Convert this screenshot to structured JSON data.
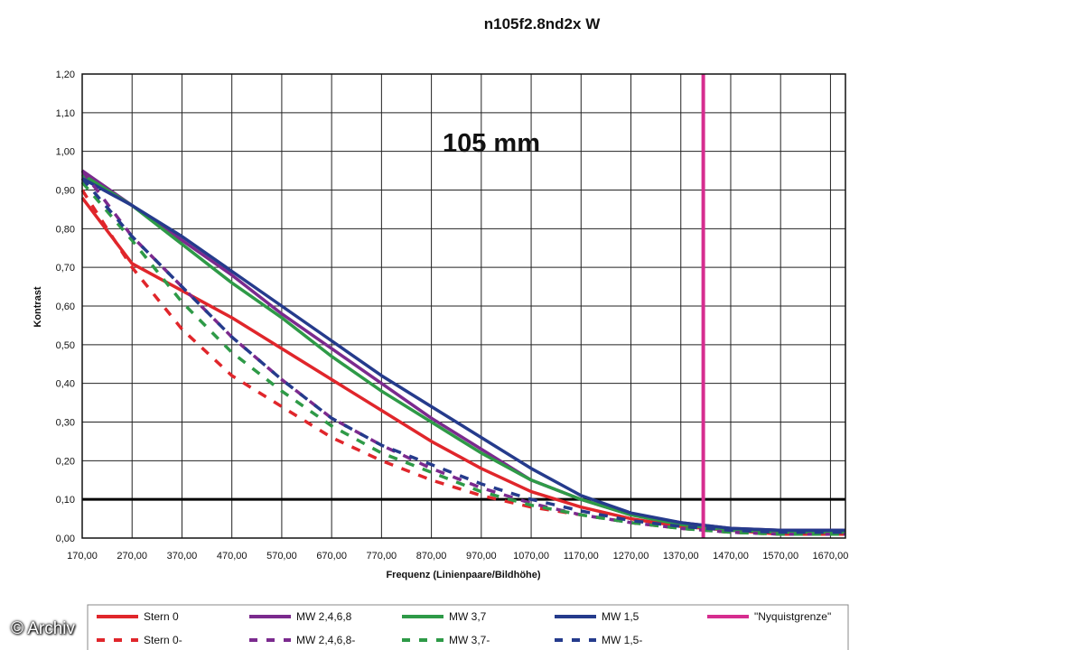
{
  "chart_data": {
    "type": "line",
    "title": "n105f2.8nd2x W",
    "annotation": "105 mm",
    "xlabel": "Frequenz (Linienpaare/Bildhöhe)",
    "ylabel": "Kontrast",
    "xlim": [
      170,
      1700
    ],
    "ylim": [
      0,
      1.2
    ],
    "xticks": [
      170,
      270,
      370,
      470,
      570,
      670,
      770,
      870,
      970,
      1070,
      1170,
      1270,
      1370,
      1470,
      1570,
      1670
    ],
    "xtick_labels": [
      "170,00",
      "270,00",
      "370,00",
      "470,00",
      "570,00",
      "670,00",
      "770,00",
      "870,00",
      "970,00",
      "1070,00",
      "1170,00",
      "1270,00",
      "1370,00",
      "1470,00",
      "1570,00",
      "1670,00"
    ],
    "yticks": [
      0,
      0.1,
      0.2,
      0.3,
      0.4,
      0.5,
      0.6,
      0.7,
      0.8,
      0.9,
      1.0,
      1.1,
      1.2
    ],
    "ytick_labels": [
      "0,00",
      "0,10",
      "0,20",
      "0,30",
      "0,40",
      "0,50",
      "0,60",
      "0,70",
      "0,80",
      "0,90",
      "1,00",
      "1,10",
      "1,20"
    ],
    "grid": true,
    "legend_position": "bottom",
    "threshold_y": 0.1,
    "threshold_color": "#000000",
    "x": [
      170,
      270,
      370,
      470,
      570,
      670,
      770,
      870,
      970,
      1070,
      1170,
      1270,
      1370,
      1470,
      1570,
      1700
    ],
    "series": [
      {
        "name": "Stern 0",
        "color": "#e0262b",
        "dash": false,
        "values": [
          0.88,
          0.71,
          0.64,
          0.57,
          0.49,
          0.41,
          0.33,
          0.25,
          0.18,
          0.12,
          0.08,
          0.05,
          0.03,
          0.02,
          0.01,
          0.01
        ]
      },
      {
        "name": "MW 2,4,6,8",
        "color": "#7b2a8e",
        "dash": false,
        "values": [
          0.95,
          0.86,
          0.77,
          0.68,
          0.58,
          0.49,
          0.4,
          0.31,
          0.23,
          0.15,
          0.1,
          0.06,
          0.04,
          0.025,
          0.02,
          0.02
        ]
      },
      {
        "name": "MW 3,7",
        "color": "#2e9a47",
        "dash": false,
        "values": [
          0.94,
          0.86,
          0.76,
          0.66,
          0.57,
          0.47,
          0.38,
          0.3,
          0.22,
          0.15,
          0.1,
          0.06,
          0.035,
          0.02,
          0.015,
          0.015
        ]
      },
      {
        "name": "MW 1,5",
        "color": "#253b8c",
        "dash": false,
        "values": [
          0.93,
          0.86,
          0.78,
          0.69,
          0.6,
          0.51,
          0.42,
          0.34,
          0.26,
          0.18,
          0.11,
          0.065,
          0.04,
          0.025,
          0.02,
          0.02
        ]
      },
      {
        "name": "\"Nyquistgrenze\"",
        "color": "#d62d8f",
        "dash": false,
        "vertical_x": 1415
      },
      {
        "name": "Stern 0-",
        "color": "#e0262b",
        "dash": true,
        "values": [
          0.9,
          0.7,
          0.54,
          0.42,
          0.34,
          0.26,
          0.2,
          0.15,
          0.11,
          0.08,
          0.06,
          0.04,
          0.025,
          0.015,
          0.01,
          0.01
        ]
      },
      {
        "name": "MW 2,4,6,8-",
        "color": "#7b2a8e",
        "dash": true,
        "values": [
          0.95,
          0.78,
          0.65,
          0.52,
          0.41,
          0.31,
          0.24,
          0.18,
          0.13,
          0.09,
          0.06,
          0.04,
          0.025,
          0.015,
          0.01,
          0.01
        ]
      },
      {
        "name": "MW 3,7-",
        "color": "#2e9a47",
        "dash": true,
        "values": [
          0.92,
          0.77,
          0.61,
          0.48,
          0.38,
          0.29,
          0.22,
          0.17,
          0.12,
          0.085,
          0.06,
          0.04,
          0.025,
          0.015,
          0.01,
          0.01
        ]
      },
      {
        "name": "MW 1,5-",
        "color": "#253b8c",
        "dash": true,
        "values": [
          0.93,
          0.78,
          0.65,
          0.52,
          0.41,
          0.31,
          0.24,
          0.19,
          0.14,
          0.1,
          0.07,
          0.045,
          0.03,
          0.02,
          0.015,
          0.015
        ]
      }
    ]
  },
  "watermark": "© Archiv"
}
